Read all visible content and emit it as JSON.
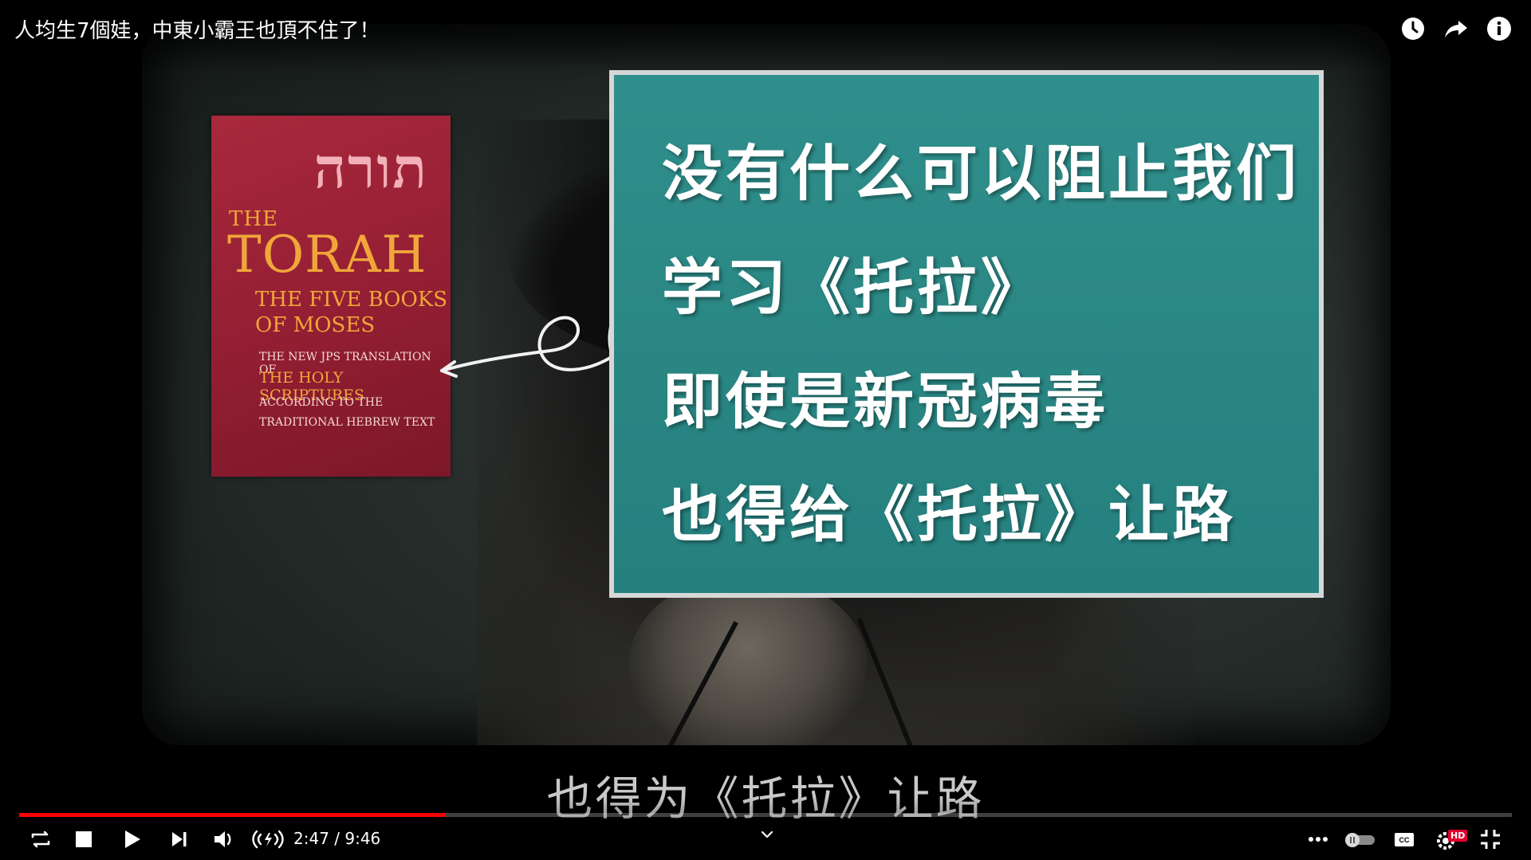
{
  "player": {
    "title": "人均生7個娃，中東小霸王也頂不住了！",
    "subtitle": "也得为《托拉》让路",
    "time": {
      "current": "2:47",
      "duration": "9:46",
      "display": "2:47 / 9:46"
    },
    "progress": {
      "played_fraction": 0.2856,
      "buffered_fraction": 0.2856
    },
    "colors": {
      "progress_played": "#ff0000",
      "panel_teal": "#2a8784",
      "book_red": "#931e33",
      "book_gold": "#f0a63a",
      "hd_badge": "#e1002d"
    },
    "top_icons": [
      "watch-later-icon",
      "share-icon",
      "info-icon"
    ],
    "hd_label": "HD"
  },
  "panel": {
    "lines": [
      "没有什么可以阻止我们",
      "学习《托拉》",
      "即使是新冠病毒",
      "也得给《托拉》让路"
    ]
  },
  "book": {
    "hebrew": "תורה",
    "the": "THE",
    "torah": "TORAH",
    "subtitle": "THE FIVE BOOKS\nOF MOSES",
    "jps": "THE NEW JPS TRANSLATION OF",
    "holy": "THE HOLY SCRIPTURES",
    "according": "ACCORDING TO THE\nTRADITIONAL HEBREW TEXT"
  }
}
